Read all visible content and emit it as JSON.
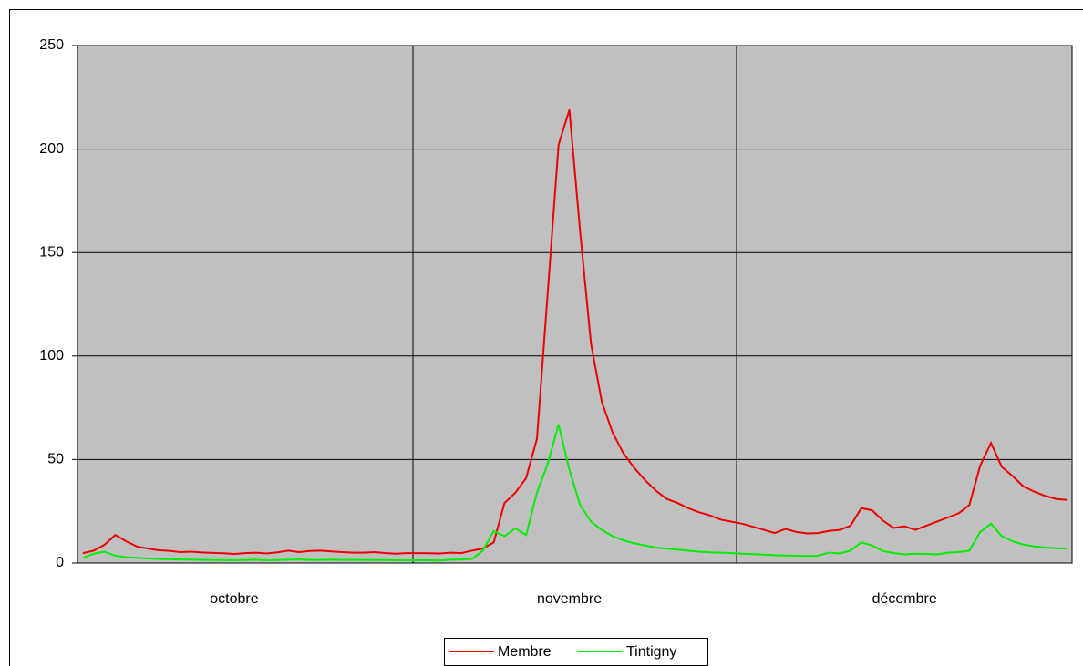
{
  "chart_data": {
    "type": "line",
    "categories": [
      null,
      null,
      null,
      null,
      null,
      null,
      null,
      null,
      null,
      null,
      null,
      null,
      null,
      null,
      "octobre",
      null,
      null,
      null,
      null,
      null,
      null,
      null,
      null,
      null,
      null,
      null,
      null,
      null,
      null,
      null,
      null,
      null,
      null,
      null,
      null,
      null,
      null,
      null,
      null,
      null,
      null,
      null,
      null,
      null,
      null,
      "novembre",
      null,
      null,
      null,
      null,
      null,
      null,
      null,
      null,
      null,
      null,
      null,
      null,
      null,
      null,
      null,
      null,
      null,
      null,
      null,
      null,
      null,
      null,
      null,
      null,
      null,
      null,
      null,
      null,
      null,
      null,
      "décembre",
      null,
      null,
      null,
      null,
      null,
      null,
      null,
      null,
      null,
      null,
      null,
      null,
      null,
      null,
      null
    ],
    "series": [
      {
        "name": "Membre",
        "color": "#ee0000",
        "values": [
          4.8,
          6,
          8.8,
          13.6,
          10.5,
          8,
          7,
          6.2,
          5.9,
          5.3,
          5.5,
          5.1,
          4.9,
          4.7,
          4.4,
          4.8,
          5,
          4.6,
          5.2,
          6,
          5.3,
          5.8,
          6,
          5.6,
          5.3,
          5,
          5,
          5.3,
          4.8,
          4.5,
          4.8,
          4.8,
          4.7,
          4.6,
          5,
          4.8,
          6,
          7,
          10,
          29,
          34,
          41,
          60,
          131,
          202,
          219,
          160,
          106,
          78,
          63,
          53,
          46,
          40,
          35,
          31,
          29,
          26.5,
          24.5,
          23,
          21,
          20,
          19,
          17.5,
          16,
          14.5,
          16.5,
          15,
          14.3,
          14.5,
          15.5,
          16,
          18,
          26.5,
          25.5,
          20.5,
          17,
          17.8,
          16,
          18,
          20,
          22,
          24,
          28,
          47,
          58,
          46.5,
          42,
          37,
          34.5,
          32.5,
          31,
          30.5
        ]
      },
      {
        "name": "Tintigny",
        "color": "#00ee00",
        "values": [
          2.5,
          4.5,
          5.5,
          3.5,
          2.8,
          2.5,
          2.2,
          2,
          1.8,
          1.7,
          1.6,
          1.5,
          1.4,
          1.4,
          1.3,
          1.4,
          1.6,
          1.3,
          1.4,
          1.6,
          1.7,
          1.5,
          1.5,
          1.6,
          1.5,
          1.5,
          1.4,
          1.4,
          1.4,
          1.3,
          1.3,
          1.3,
          1.3,
          1.2,
          1.6,
          1.7,
          2,
          6,
          15.5,
          13,
          16.8,
          13.5,
          34,
          48,
          67,
          45,
          28,
          20,
          16,
          13,
          11,
          9.5,
          8.5,
          7.5,
          7,
          6.5,
          6,
          5.5,
          5.2,
          5,
          4.8,
          4.5,
          4.3,
          4.1,
          3.8,
          3.6,
          3.5,
          3.4,
          3.5,
          5,
          4.6,
          6,
          10,
          8.5,
          5.8,
          4.8,
          4.2,
          4.5,
          4.4,
          4.2,
          5,
          5.3,
          6,
          15,
          19,
          13,
          10.5,
          9,
          8,
          7.5,
          7.2,
          7
        ]
      }
    ],
    "ylim": [
      0,
      250
    ],
    "yticks": [
      0,
      50,
      100,
      150,
      200,
      250
    ],
    "grid": true,
    "legend": "bottom"
  }
}
